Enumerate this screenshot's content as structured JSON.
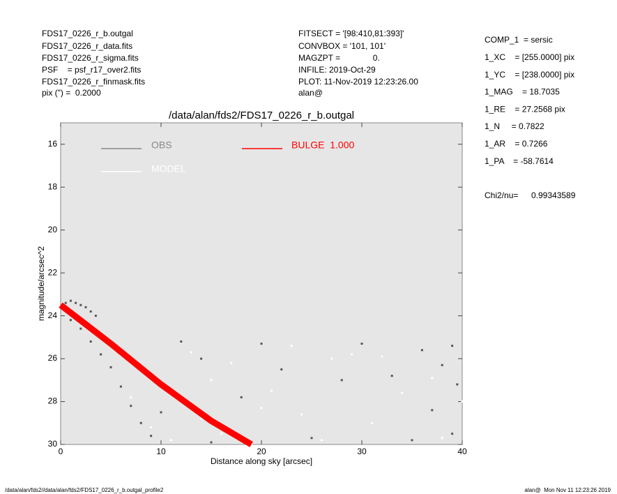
{
  "header_left": [
    "FDS17_0226_r_b.outgal",
    "FDS17_0226_r_data.fits",
    "FDS17_0226_r_sigma.fits",
    "PSF    = psf_r17_over2.fits",
    "FDS17_0226_r_finmask.fits",
    "pix (\") =  0.2000"
  ],
  "header_middle": [
    "FITSECT = '[98:410,81:393]'",
    "CONVBOX = '101, 101'",
    "MAGZPT =              0.",
    "INFILE: 2019-Oct-29",
    "PLOT: 11-Nov-2019 12:23:26.00",
    "alan@"
  ],
  "params": [
    "COMP_1  = sersic",
    "1_XC    = [255.0000] pix",
    "1_YC    = [238.0000] pix",
    "1_MAG    = 18.7035",
    "1_RE    = 27.2568 pix",
    "1_N     = 0.7822",
    "1_AR    = 0.7266",
    "1_PA    = -58.7614"
  ],
  "chi2": {
    "label": "Chi2/nu=",
    "value": "0.99343589"
  },
  "footer_left": "/data/alan/fds2//data/alan/fds2/FDS17_0226_r_b.outgal_profile2",
  "footer_right": "alan@  Mon Nov 11 12:23:26 2019",
  "chart_data": {
    "type": "scatter",
    "title": "/data/alan/fds2/FDS17_0226_r_b.outgal",
    "x_label": "Distance along sky [arcsec]",
    "y_label": "magnitude/arcsec^2",
    "xlim": [
      0,
      40
    ],
    "ylim": [
      30,
      15
    ],
    "xticks": [
      0,
      10,
      20,
      30,
      40
    ],
    "yticks": [
      16,
      18,
      20,
      22,
      24,
      26,
      28,
      30
    ],
    "background": "#e6e6e6",
    "series": [
      {
        "name": "OBS",
        "color": "#888888",
        "point_color": "#555555",
        "style": "points",
        "x": [
          0.5,
          1,
          1.5,
          2,
          2.5,
          3,
          3.5,
          1,
          2,
          3,
          4,
          5,
          6,
          7,
          8,
          9,
          5,
          12,
          20,
          30,
          39,
          38,
          39.5,
          37,
          39,
          35,
          25,
          15,
          10,
          33,
          28,
          22,
          18,
          14,
          36
        ],
        "values": [
          23.4,
          23.3,
          23.4,
          23.5,
          23.6,
          23.8,
          24.0,
          24.2,
          24.6,
          25.2,
          25.8,
          26.4,
          27.3,
          28.2,
          29.0,
          29.6,
          25.3,
          25.2,
          25.3,
          25.3,
          25.4,
          26.3,
          27.2,
          28.4,
          29.5,
          29.8,
          29.7,
          29.9,
          28.5,
          26.8,
          27.0,
          26.5,
          27.8,
          26.0,
          25.6
        ]
      },
      {
        "name": "MODEL",
        "color": "#ffffff",
        "style": "points",
        "x": [
          0.3,
          1,
          2,
          4,
          6,
          8,
          10,
          12,
          14,
          16,
          7,
          9,
          11,
          13,
          17,
          21,
          24,
          27,
          31,
          34,
          37,
          40,
          19,
          29,
          23,
          15,
          26,
          32,
          38,
          20
        ],
        "values": [
          23.5,
          23.7,
          24.1,
          24.9,
          25.8,
          26.5,
          27.3,
          28.0,
          28.8,
          29.5,
          27.8,
          29.2,
          29.8,
          25.7,
          26.2,
          27.5,
          28.6,
          26.0,
          29.0,
          27.6,
          26.9,
          28.0,
          30,
          25.8,
          25.4,
          27.0,
          29.8,
          25.9,
          29.7,
          28.3
        ]
      },
      {
        "name": "BULGE  1.000",
        "color": "#ff0000",
        "style": "line",
        "x": [
          0,
          5,
          10,
          15,
          19
        ],
        "values": [
          23.5,
          25.3,
          27.2,
          28.9,
          30
        ]
      }
    ]
  }
}
